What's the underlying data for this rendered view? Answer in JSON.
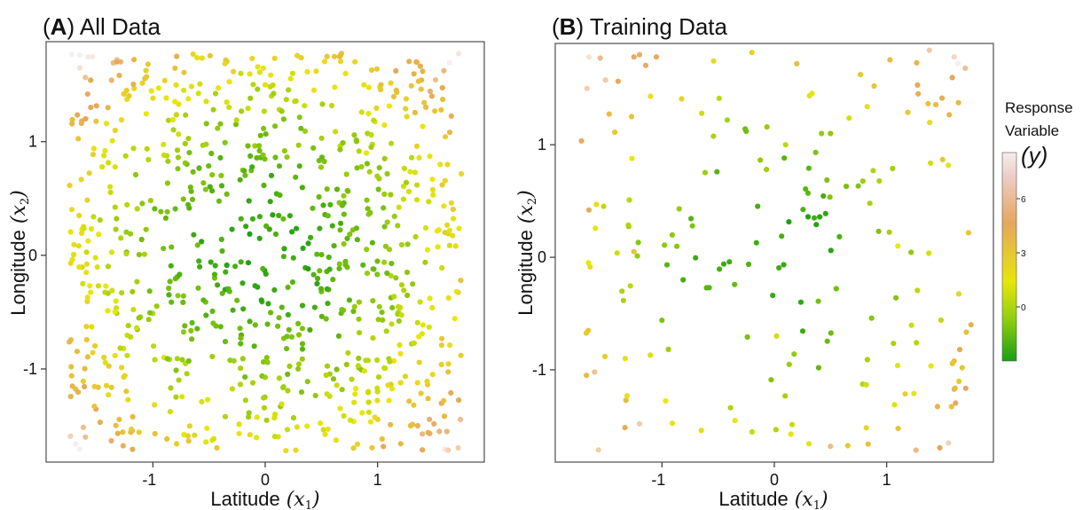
{
  "panels": {
    "a": {
      "letter": "A",
      "title": "All Data"
    },
    "b": {
      "letter": "B",
      "title": "Training Data"
    }
  },
  "axes": {
    "xlabel": "Latitude",
    "xsymbol": "x",
    "xsub": "1",
    "ylabel": "Longitude",
    "ysymbol": "x",
    "ysub": "2"
  },
  "legend": {
    "title_line1": "Response",
    "title_line2": "Variable",
    "symbol": "(y)",
    "ticks": [
      "6",
      "3",
      "0"
    ]
  },
  "colors": {
    "low": "#1a9e14",
    "mid": "#e8e80a",
    "high": "#e6a65c",
    "top": "#f6eeee"
  },
  "chart_data": [
    {
      "type": "scatter",
      "title": "All Data",
      "xlabel": "Latitude (x1)",
      "ylabel": "Longitude (x2)",
      "xlim": [
        -1.95,
        1.95
      ],
      "ylim": [
        -1.82,
        1.88
      ],
      "xticks": [
        -1,
        0,
        1
      ],
      "yticks": [
        -1,
        0,
        1
      ],
      "grid": false,
      "color_variable": "y",
      "n_points": 900,
      "description_of_pattern": "y increases with distance from origin",
      "points": [
        [
          0.12,
          0.35,
          -0.9
        ],
        [
          -0.45,
          -0.2,
          0.2
        ],
        [
          0.3,
          -0.7,
          0.4
        ],
        [
          0.9,
          0.9,
          2.6
        ],
        [
          -1.4,
          1.3,
          4.6
        ],
        [
          1.55,
          -1.55,
          5.6
        ],
        [
          -1.6,
          -1.6,
          5.9
        ],
        [
          0.0,
          1.5,
          3.0
        ],
        [
          1.6,
          0.2,
          3.8
        ],
        [
          -1.65,
          1.65,
          6.8
        ],
        [
          1.35,
          1.7,
          5.4
        ],
        [
          0.55,
          1.75,
          3.8
        ],
        [
          -0.9,
          -0.9,
          2.2
        ],
        [
          0.7,
          0.1,
          0.6
        ],
        [
          -0.2,
          0.75,
          0.5
        ]
      ]
    },
    {
      "type": "scatter",
      "title": "Training Data",
      "xlabel": "Latitude (x1)",
      "ylabel": "Longitude (x2)",
      "xlim": [
        -1.95,
        1.95
      ],
      "ylim": [
        -1.82,
        1.9
      ],
      "xticks": [
        -1,
        0,
        1
      ],
      "yticks": [
        -1,
        0,
        1
      ],
      "grid": false,
      "color_variable": "y",
      "n_points": 200,
      "points": [
        [
          -1.65,
          1.78,
          6.9
        ],
        [
          -1.55,
          1.77,
          5.8
        ],
        [
          -1.25,
          1.78,
          5.3
        ],
        [
          -1.2,
          1.8,
          5.4
        ],
        [
          -1.05,
          1.78,
          5.3
        ],
        [
          -0.2,
          1.82,
          3.4
        ],
        [
          0.2,
          1.72,
          4.2
        ],
        [
          1.38,
          1.84,
          6.2
        ],
        [
          1.6,
          1.78,
          6.6
        ],
        [
          1.7,
          1.68,
          6.0
        ],
        [
          0.3,
          0.36,
          -1.6
        ],
        [
          -0.4,
          -0.04,
          -1.0
        ],
        [
          -0.45,
          -0.06,
          -1.1
        ],
        [
          0.3,
          0.57,
          -0.4
        ],
        [
          -0.58,
          -0.27,
          -0.5
        ],
        [
          -0.25,
          1.12,
          0.1
        ],
        [
          -0.26,
          1.14,
          0.0
        ],
        [
          0.42,
          1.1,
          0.8
        ],
        [
          0.5,
          1.1,
          0.7
        ],
        [
          0.64,
          0.63,
          0.2
        ],
        [
          -1.0,
          -0.56,
          0.3
        ],
        [
          -0.07,
          0.78,
          1.0
        ],
        [
          0.85,
          0.48,
          1.2
        ],
        [
          0.02,
          -0.7,
          2.0
        ],
        [
          -0.35,
          -1.45,
          2.6
        ],
        [
          -1.65,
          0.42,
          5.3
        ],
        [
          1.55,
          -1.65,
          6.5
        ],
        [
          -1.2,
          -1.48,
          6.3
        ],
        [
          -1.6,
          -1.02,
          6.0
        ],
        [
          0.5,
          -1.68,
          5.8
        ],
        [
          1.65,
          -0.82,
          5.0
        ],
        [
          1.1,
          0.1,
          2.5
        ],
        [
          -1.25,
          0.05,
          4.0
        ],
        [
          1.75,
          -0.6,
          4.8
        ],
        [
          0.1,
          1.0,
          1.6
        ]
      ]
    }
  ]
}
